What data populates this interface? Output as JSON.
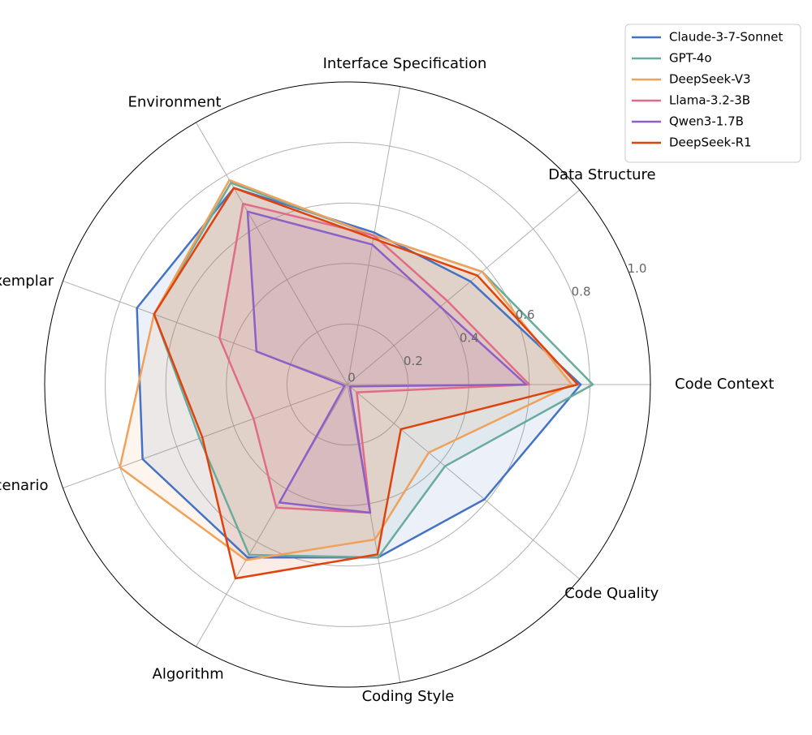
{
  "chart_data": {
    "type": "radar",
    "axes": [
      "Code Context",
      "Data Structure",
      "Interface Specification",
      "Environment",
      "Exemplar",
      "Scenario",
      "Algorithm",
      "Coding Style",
      "Code Quality"
    ],
    "radial_ticks": [
      "0",
      "0.2",
      "0.4",
      "0.6",
      "0.8",
      "1.0"
    ],
    "tick_values": [
      0,
      0.2,
      0.4,
      0.6,
      0.8,
      1.0
    ],
    "rlim": [
      0,
      1.0
    ],
    "legend_position": "top-right",
    "series": [
      {
        "name": "Claude-3-7-Sonnet",
        "color": "#4472c4",
        "fill_opacity": 0.1,
        "values": [
          0.77,
          0.53,
          0.51,
          0.75,
          0.74,
          0.72,
          0.66,
          0.58,
          0.59
        ]
      },
      {
        "name": "GPT-4o",
        "color": "#6aab9c",
        "fill_opacity": 0.1,
        "values": [
          0.81,
          0.58,
          0.5,
          0.77,
          0.68,
          0.52,
          0.65,
          0.58,
          0.42
        ]
      },
      {
        "name": "DeepSeek-V3",
        "color": "#f0a15a",
        "fill_opacity": 0.1,
        "values": [
          0.74,
          0.58,
          0.5,
          0.78,
          0.68,
          0.8,
          0.67,
          0.52,
          0.35
        ]
      },
      {
        "name": "Llama-3.2-3B",
        "color": "#e06c8a",
        "fill_opacity": 0.1,
        "values": [
          0.6,
          0.43,
          0.5,
          0.69,
          0.45,
          0.33,
          0.47,
          0.43,
          0.04
        ]
      },
      {
        "name": "Qwen3-1.7B",
        "color": "#8e5fc7",
        "fill_opacity": 0.1,
        "values": [
          0.59,
          0.4,
          0.47,
          0.66,
          0.32,
          0.01,
          0.45,
          0.43,
          0.01
        ]
      },
      {
        "name": "DeepSeek-R1",
        "color": "#e0420c",
        "fill_opacity": 0.1,
        "values": [
          0.76,
          0.56,
          0.49,
          0.75,
          0.68,
          0.51,
          0.74,
          0.57,
          0.23
        ]
      }
    ]
  }
}
